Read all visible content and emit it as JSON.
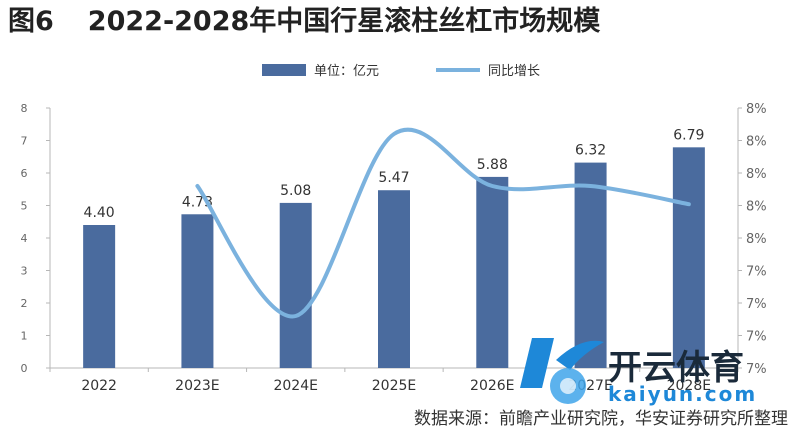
{
  "figure": {
    "label": "图6",
    "title": "2022-2028年中国行星滚柱丝杠市场规模",
    "source": "数据来源：前瞻产业研究院，华安证券研究所整理"
  },
  "watermark": {
    "text": "开云体育",
    "subtext": "kaiyun.com"
  },
  "colors": {
    "bar": "#4a6b9e",
    "line": "#7bb2de",
    "axis": "#b7b7b7",
    "text": "#333333"
  },
  "chart_data": {
    "type": "bar",
    "title": "2022-2028年中国行星滚柱丝杠市场规模",
    "categories": [
      "2022",
      "2023E",
      "2024E",
      "2025E",
      "2026E",
      "2027E",
      "2028E"
    ],
    "series": [
      {
        "name": "单位：亿元",
        "type": "bar",
        "axis": "left",
        "values": [
          4.4,
          4.73,
          5.08,
          5.47,
          5.88,
          6.32,
          6.79
        ],
        "labels": [
          "4.40",
          "4.73",
          "5.08",
          "5.47",
          "5.88",
          "6.32",
          "6.79"
        ]
      },
      {
        "name": "同比增长",
        "type": "line",
        "axis": "right",
        "smooth": true,
        "values": [
          null,
          7.5,
          7.0,
          7.7,
          7.5,
          7.5,
          7.43
        ]
      }
    ],
    "left_axis": {
      "ylim": [
        0,
        8
      ],
      "ticks": [
        "0",
        "1",
        "2",
        "3",
        "4",
        "5",
        "6",
        "7",
        "8"
      ]
    },
    "right_axis": {
      "ylim": [
        6.8,
        7.8
      ],
      "ticks": [
        "7%",
        "7%",
        "7%",
        "7%",
        "8%",
        "8%",
        "8%",
        "8%",
        "8%"
      ]
    },
    "legend": "top-center",
    "grid": false
  }
}
